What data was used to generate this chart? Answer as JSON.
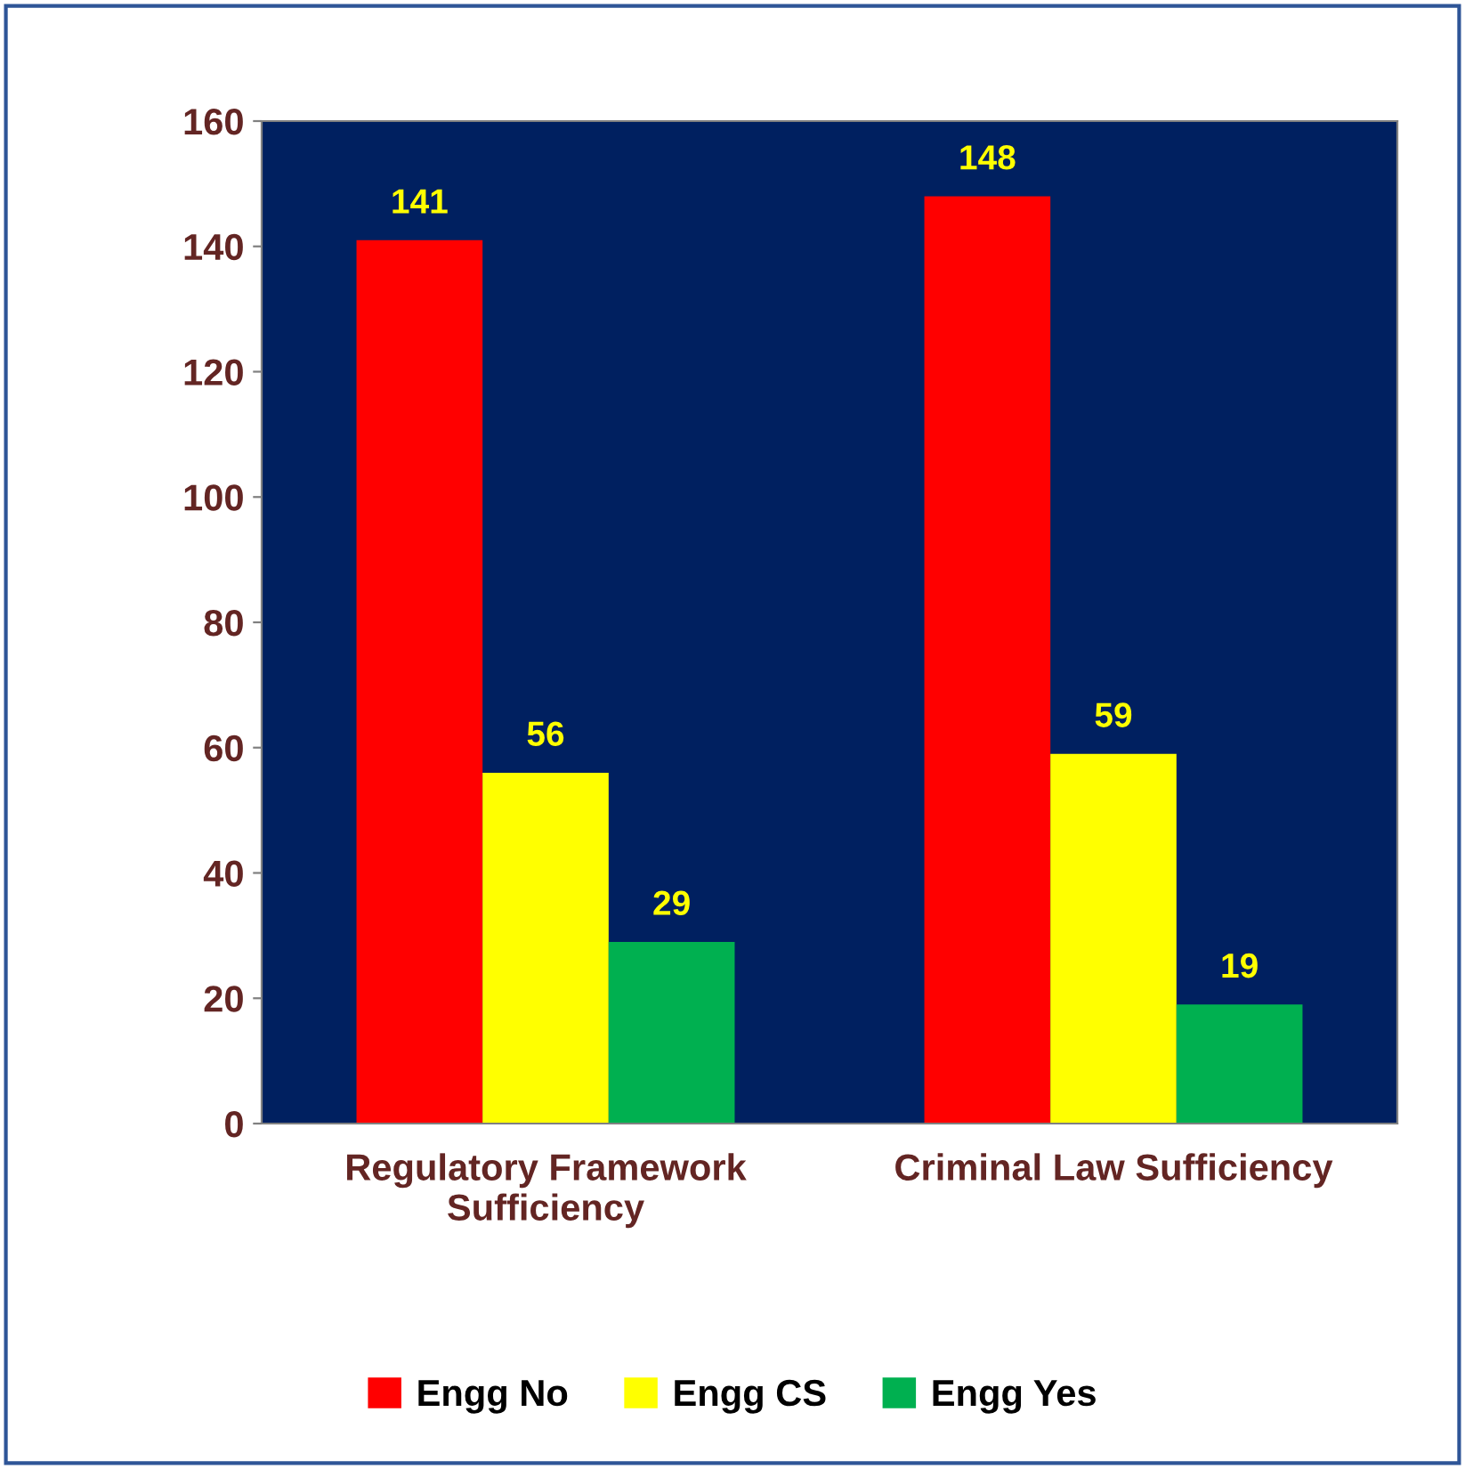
{
  "chart_data": {
    "type": "bar",
    "categories": [
      "Regulatory Framework\nSufficiency",
      "Criminal Law Sufficiency"
    ],
    "series": [
      {
        "name": "Engg No",
        "color": "#ff0000",
        "values": [
          141,
          148
        ]
      },
      {
        "name": "Engg CS",
        "color": "#ffff00",
        "values": [
          56,
          59
        ]
      },
      {
        "name": "Engg Yes",
        "color": "#00b050",
        "values": [
          29,
          19
        ]
      }
    ],
    "ylim": [
      0,
      160
    ],
    "yticks": [
      0,
      20,
      40,
      60,
      80,
      100,
      120,
      140,
      160
    ],
    "grid": false,
    "legend": "bottom",
    "data_labels": true
  }
}
